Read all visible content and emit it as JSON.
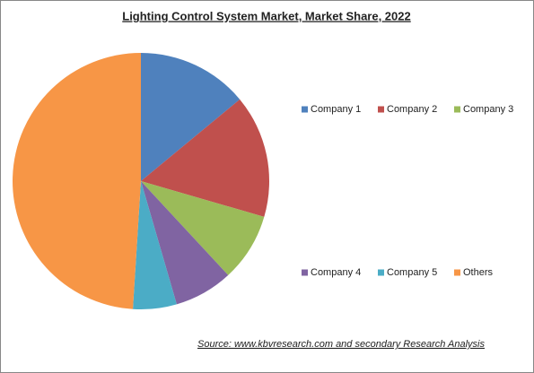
{
  "chart_data": {
    "type": "pie",
    "title": "Lighting Control System Market, Market Share, 2022",
    "categories": [
      "Company 1",
      "Company 2",
      "Company 3",
      "Company 4",
      "Company 5",
      "Others"
    ],
    "values": [
      14,
      15.5,
      8.6,
      7.4,
      5.5,
      49
    ],
    "colors": [
      "#4f81bd",
      "#c0504d",
      "#9bbb59",
      "#8064a2",
      "#4bacc6",
      "#f79646"
    ],
    "source": "Source:  www.kbvresearch.com  and secondary Research  Analysis"
  }
}
